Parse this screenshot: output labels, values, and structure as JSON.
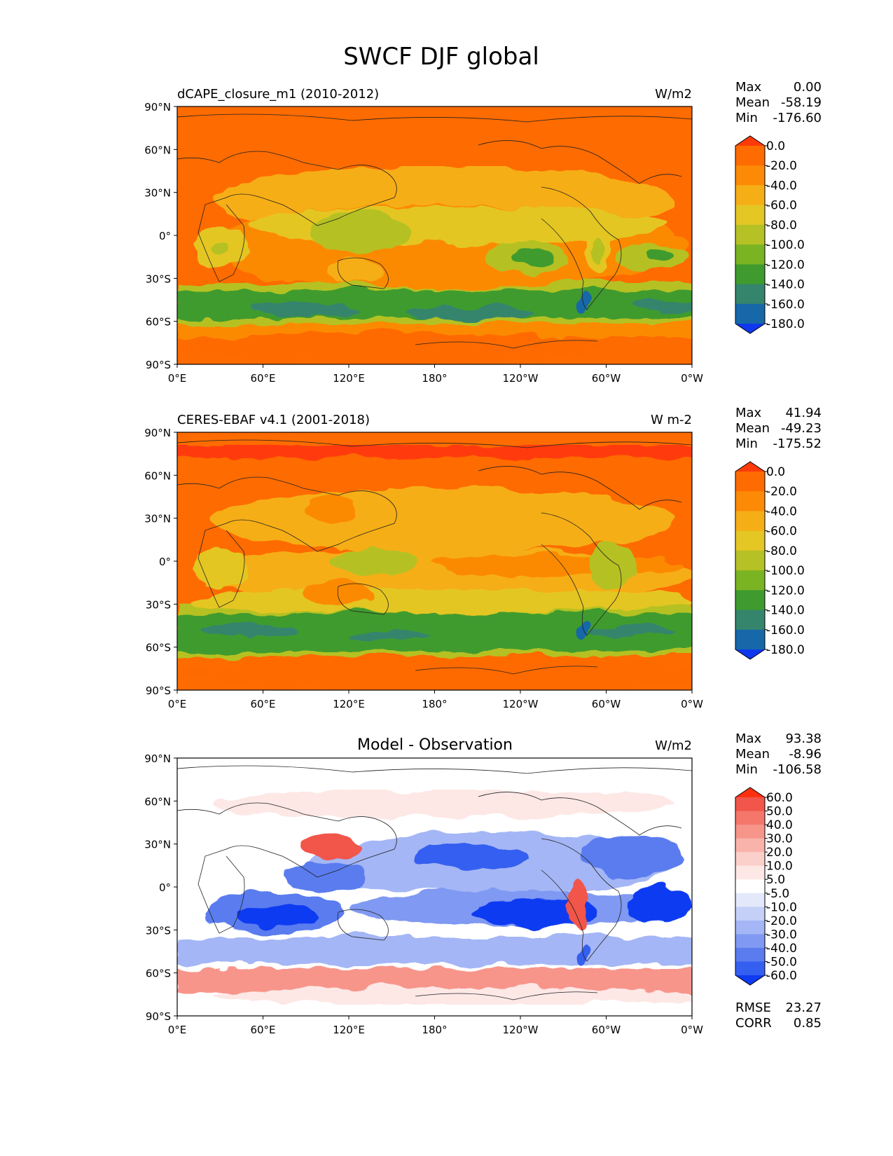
{
  "title": "SWCF DJF global",
  "lat_ticks": [
    "90°N",
    "60°N",
    "30°N",
    "0°",
    "30°S",
    "60°S",
    "90°S"
  ],
  "lon_ticks": [
    "0°E",
    "60°E",
    "120°E",
    "180°",
    "120°W",
    "60°W",
    "0°W"
  ],
  "panels": [
    {
      "id": "model",
      "left_title": "dCAPE_closure_m1 (2010-2012)",
      "center_title": "",
      "units": "W/m2",
      "stats": [
        {
          "label": "Max",
          "value": "0.00"
        },
        {
          "label": "Mean",
          "value": "-58.19"
        },
        {
          "label": "Min",
          "value": "-176.60"
        }
      ],
      "colorbar_labels": [
        "0.0",
        "-20.0",
        "-40.0",
        "-60.0",
        "-80.0",
        "-100.0",
        "-120.0",
        "-140.0",
        "-160.0",
        "-180.0"
      ],
      "colorbar_colors": [
        "#ff3a0a",
        "#fe6b00",
        "#fc8a06",
        "#f6ae17",
        "#e4c624",
        "#b5c124",
        "#7ab423",
        "#3f9b2d",
        "#35856d",
        "#1668a8",
        "#0f37ee"
      ]
    },
    {
      "id": "obs",
      "left_title": "CERES-EBAF v4.1 (2001-2018)",
      "center_title": "",
      "units": "W m-2",
      "stats": [
        {
          "label": "Max",
          "value": "41.94"
        },
        {
          "label": "Mean",
          "value": "-49.23"
        },
        {
          "label": "Min",
          "value": "-175.52"
        }
      ],
      "colorbar_labels": [
        "0.0",
        "-20.0",
        "-40.0",
        "-60.0",
        "-80.0",
        "-100.0",
        "-120.0",
        "-140.0",
        "-160.0",
        "-180.0"
      ],
      "colorbar_colors": [
        "#ff3a0a",
        "#fe6b00",
        "#fc8a06",
        "#f6ae17",
        "#e4c624",
        "#b5c124",
        "#7ab423",
        "#3f9b2d",
        "#35856d",
        "#1668a8",
        "#0f37ee"
      ]
    },
    {
      "id": "diff",
      "left_title": "",
      "center_title": "Model - Observation",
      "units": "W/m2",
      "stats": [
        {
          "label": "Max",
          "value": "93.38"
        },
        {
          "label": "Mean",
          "value": "-8.96"
        },
        {
          "label": "Min",
          "value": "-106.58"
        }
      ],
      "colorbar_labels": [
        "60.0",
        "50.0",
        "40.0",
        "30.0",
        "20.0",
        "10.0",
        "5.0",
        "-5.0",
        "-10.0",
        "-20.0",
        "-30.0",
        "-40.0",
        "-50.0",
        "-60.0"
      ],
      "colorbar_colors": [
        "#ff3010",
        "#f2554a",
        "#f5766b",
        "#f7958b",
        "#f9b3ab",
        "#fbcfca",
        "#fde8e6",
        "#ffffff",
        "#e3e8fb",
        "#c5d0f8",
        "#a4b6f5",
        "#8099f2",
        "#5a7cef",
        "#355ff0",
        "#0f3af2"
      ],
      "bottom_stats": [
        {
          "label": "RMSE",
          "value": "23.27"
        },
        {
          "label": "CORR",
          "value": "0.85"
        }
      ]
    }
  ]
}
